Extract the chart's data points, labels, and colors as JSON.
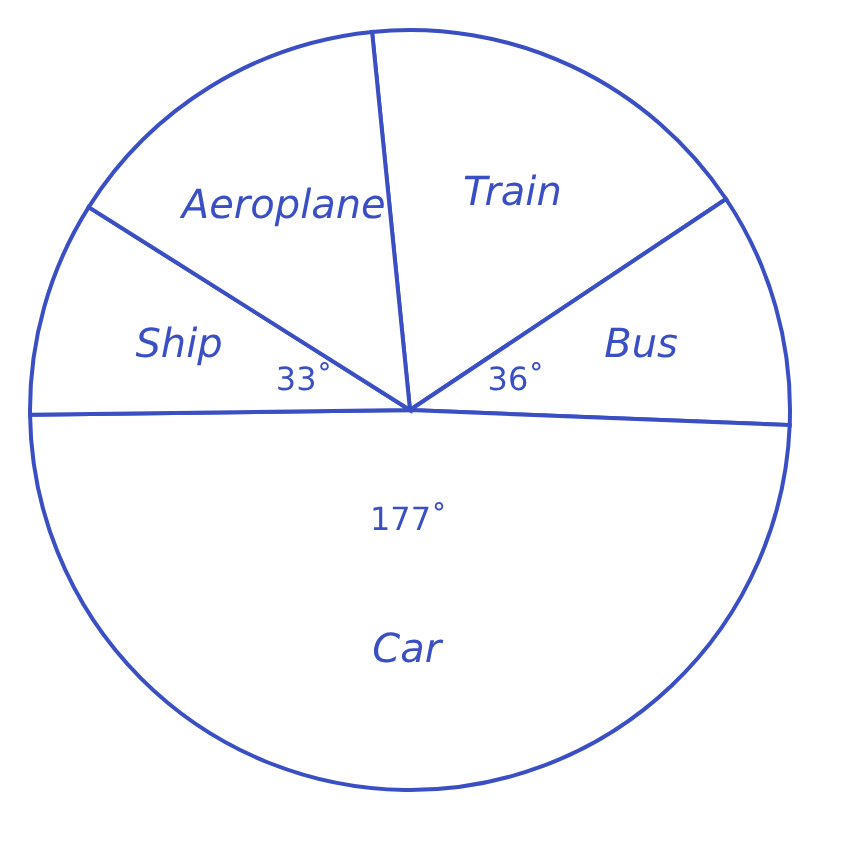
{
  "chart_data": {
    "type": "pie",
    "categories": [
      "Train",
      "Bus",
      "Car",
      "Ship",
      "Aeroplane"
    ],
    "values": [
      62,
      36,
      177,
      33,
      52
    ],
    "colors": [
      "#ffffff",
      "#ffffff",
      "#ffffff",
      "#ffffff",
      "#ffffff"
    ],
    "value_labels": [
      null,
      "36˚",
      "177˚",
      "33˚",
      null
    ],
    "legend": false
  }
}
